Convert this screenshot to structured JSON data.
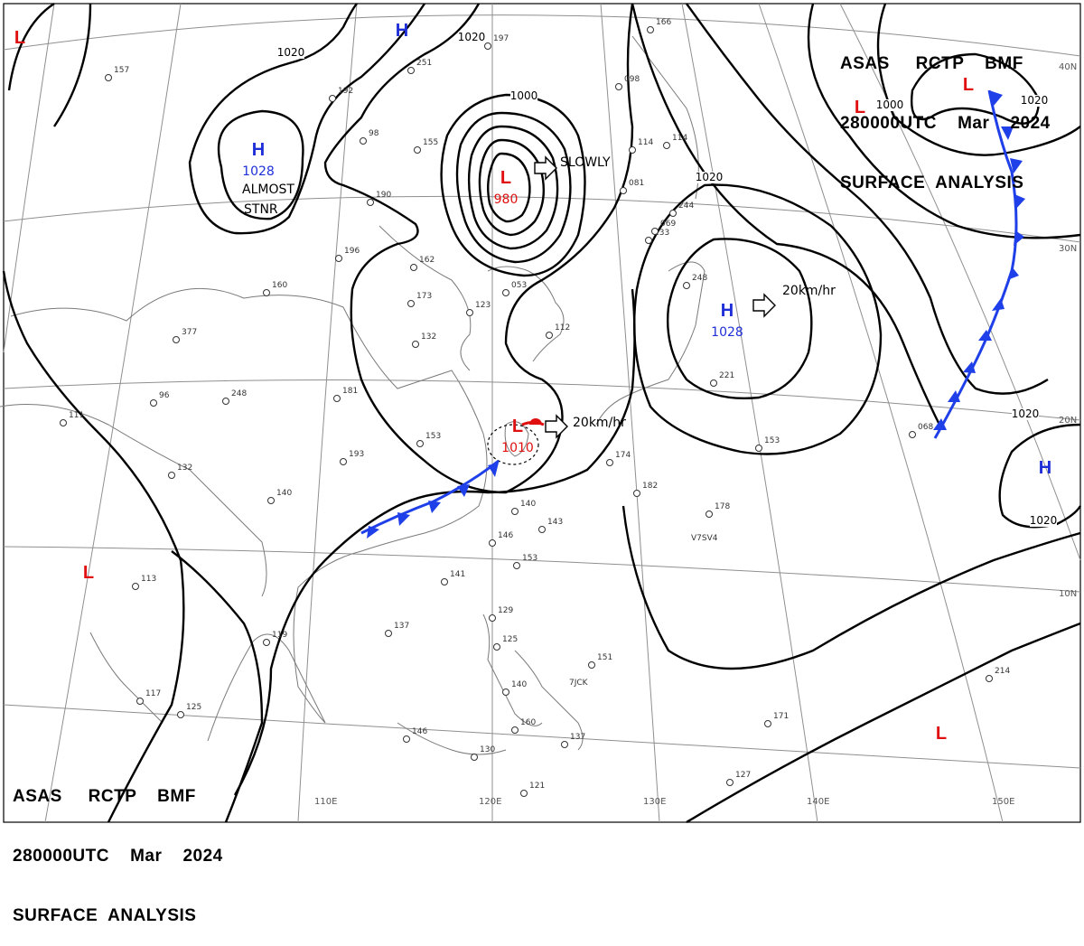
{
  "header": {
    "line1": "ASAS     RCTP    BMF",
    "line2": "280000UTC    Mar    2024",
    "line3": "SURFACE  ANALYSIS"
  },
  "colors": {
    "isobar": "#000000",
    "high": "#1f2fd8",
    "low": "#e01010",
    "cold_front": "#1f3fe8",
    "warm_front": "#e01010",
    "grid": "#8a8a8a",
    "coast": "#777777"
  },
  "pressure_centers": [
    {
      "type": "H",
      "value": "1028",
      "note": "ALMOST STNR"
    },
    {
      "type": "H",
      "value": "1028",
      "note": "20km/hr"
    },
    {
      "type": "H",
      "value": ""
    },
    {
      "type": "L",
      "value": "980",
      "note": "SLOWLY"
    },
    {
      "type": "L",
      "value": "1010",
      "note": "20km/hr"
    },
    {
      "type": "H",
      "value": ""
    },
    {
      "type": "L",
      "value": ""
    },
    {
      "type": "L",
      "value": ""
    },
    {
      "type": "L",
      "value": ""
    },
    {
      "type": "L",
      "value": ""
    },
    {
      "type": "L",
      "value": ""
    }
  ],
  "isobar_labels": [
    "1020",
    "1020",
    "1000",
    "1020",
    "1020",
    "1020",
    "1000",
    "1020"
  ],
  "latitude_labels": [
    "40N",
    "30N",
    "20N",
    "10N"
  ],
  "longitude_labels": [
    "110E",
    "120E",
    "130E",
    "140E",
    "150E"
  ],
  "station_labels": [
    "157",
    "251",
    "192",
    "197",
    "166",
    "98",
    "155",
    "190",
    "196",
    "162",
    "173",
    "160",
    "377",
    "248",
    "181",
    "153",
    "123",
    "132",
    "193",
    "140",
    "132",
    "111",
    "96",
    "140",
    "143",
    "153",
    "141",
    "146",
    "137",
    "119",
    "129",
    "125",
    "140",
    "151",
    "146",
    "130",
    "160",
    "137",
    "121",
    "113",
    "117",
    "125",
    "127",
    "171",
    "214",
    "244",
    "248",
    "221",
    "153",
    "174",
    "182",
    "178",
    "068",
    "133",
    "098",
    "114",
    "081",
    "114",
    "069",
    "112",
    "053"
  ],
  "ship_ids": [
    "V7SV4",
    "7JCK"
  ],
  "motion_words": [
    "ALMOST",
    "STNR",
    "SLOWLY",
    "20km/hr",
    "20km/hr"
  ]
}
